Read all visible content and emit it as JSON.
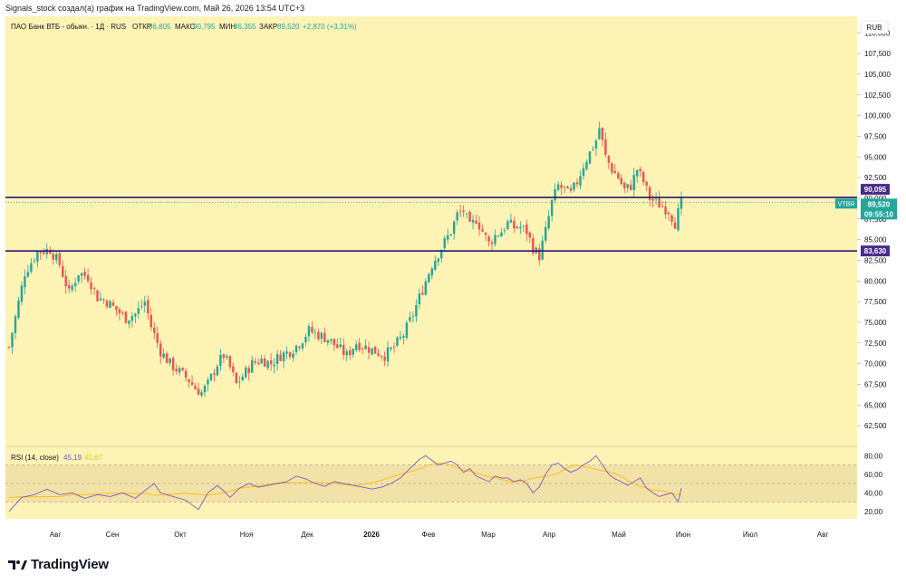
{
  "header": {
    "attribution": "Signals_stock создал(а) график на TradingView.com, Май 26, 2026 13:54 UTC+3"
  },
  "legend": {
    "title": "ПАО Банк ВТБ - обыкн. · 1Д · RUS",
    "open_label": "ОТКР",
    "open_value": "86,805",
    "high_label": "МАКС",
    "high_value": "90,795",
    "low_label": "МИН",
    "low_value": "86,355",
    "close_label": "ЗАКР",
    "close_value": "89,520",
    "change": "+2,870 (+3,31%)"
  },
  "currency": "RUB",
  "price_labels": {
    "level_upper": "90,095",
    "ticker": "VTBR",
    "last_price": "89,520",
    "countdown": "09:55:10",
    "level_lower": "83,630"
  },
  "rsi": {
    "label": "RSI (14, close)",
    "value": "45,19",
    "ma_value": "41,67"
  },
  "brand": {
    "name": "TradingView"
  },
  "colors": {
    "background": "#fdf3b5",
    "up": "#26a69a",
    "down": "#ef5350",
    "level_line": "#2a1a6e",
    "last_price_badge": "#26a69a",
    "level_badge": "#4a2a8a",
    "rsi_line": "#7e57c2",
    "rsi_ma": "#f5c216",
    "rsi_band": "#f3e2a8"
  },
  "chart_data": {
    "type": "candlestick",
    "title": "ПАО Банк ВТБ - обыкн. · 1Д · RUS",
    "ylim": [
      60000,
      112000
    ],
    "y_ticks": [
      "62,500",
      "65,000",
      "67,500",
      "70,000",
      "72,500",
      "75,000",
      "77,500",
      "80,000",
      "82,500",
      "85,000",
      "87,500",
      "90,000",
      "92,500",
      "95,000",
      "97,500",
      "100,000",
      "102,500",
      "105,000",
      "107,500",
      "110,000"
    ],
    "x_ticks": [
      "Авг",
      "Сен",
      "Окт",
      "Ноя",
      "Дек",
      "2026",
      "Фев",
      "Мар",
      "Апр",
      "Май",
      "Июн",
      "Июл",
      "Авг"
    ],
    "horizontal_levels": [
      90.095,
      83.63
    ],
    "last_price": 89.52,
    "close_path": [
      [
        0,
        72.0
      ],
      [
        5,
        81.0
      ],
      [
        9,
        83.5
      ],
      [
        13,
        83.8
      ],
      [
        16,
        82.0
      ],
      [
        19,
        78.5
      ],
      [
        22,
        81.0
      ],
      [
        25,
        80.5
      ],
      [
        28,
        78.0
      ],
      [
        31,
        77.5
      ],
      [
        34,
        76.5
      ],
      [
        37,
        75.5
      ],
      [
        40,
        76.0
      ],
      [
        43,
        77.5
      ],
      [
        45,
        74.5
      ],
      [
        48,
        71.5
      ],
      [
        51,
        70.0
      ],
      [
        54,
        69.0
      ],
      [
        57,
        68.0
      ],
      [
        59,
        67.0
      ],
      [
        61,
        66.5
      ],
      [
        63,
        67.5
      ],
      [
        66,
        70.0
      ],
      [
        68,
        71.0
      ],
      [
        70,
        69.5
      ],
      [
        72,
        67.5
      ],
      [
        74,
        68.5
      ],
      [
        77,
        70.0
      ],
      [
        80,
        70.5
      ],
      [
        83,
        70.0
      ],
      [
        86,
        71.0
      ],
      [
        89,
        71.5
      ],
      [
        92,
        72.5
      ],
      [
        95,
        74.0
      ],
      [
        98,
        73.5
      ],
      [
        101,
        73.0
      ],
      [
        104,
        72.0
      ],
      [
        107,
        71.0
      ],
      [
        110,
        72.5
      ],
      [
        113,
        72.0
      ],
      [
        116,
        71.5
      ],
      [
        119,
        71.0
      ],
      [
        122,
        72.0
      ],
      [
        125,
        73.5
      ],
      [
        128,
        76.0
      ],
      [
        131,
        79.0
      ],
      [
        134,
        82.0
      ],
      [
        137,
        84.0
      ],
      [
        140,
        86.0
      ],
      [
        142,
        88.0
      ],
      [
        144,
        88.5
      ],
      [
        146,
        86.5
      ],
      [
        148,
        87.5
      ],
      [
        150,
        86.0
      ],
      [
        152,
        84.5
      ],
      [
        154,
        85.5
      ],
      [
        156,
        86.0
      ],
      [
        158,
        87.0
      ],
      [
        160,
        86.5
      ],
      [
        162,
        86.5
      ],
      [
        164,
        86.0
      ],
      [
        166,
        84.0
      ],
      [
        168,
        83.0
      ],
      [
        170,
        86.0
      ],
      [
        172,
        89.5
      ],
      [
        174,
        91.5
      ],
      [
        176,
        91.0
      ],
      [
        178,
        90.5
      ],
      [
        180,
        92.0
      ],
      [
        182,
        94.0
      ],
      [
        184,
        95.5
      ],
      [
        186,
        97.0
      ],
      [
        187,
        98.5
      ],
      [
        189,
        95.0
      ],
      [
        191,
        93.5
      ],
      [
        193,
        92.5
      ],
      [
        195,
        91.0
      ],
      [
        197,
        91.5
      ],
      [
        199,
        93.5
      ],
      [
        201,
        92.0
      ],
      [
        203,
        90.0
      ],
      [
        205,
        89.5
      ],
      [
        207,
        89.0
      ],
      [
        209,
        88.5
      ],
      [
        211,
        87.0
      ],
      [
        213,
        89.5
      ]
    ],
    "rsi": {
      "ylim": [
        12,
        90
      ],
      "y_ticks": [
        "20,00",
        "40,00",
        "60,00",
        "80,00"
      ],
      "overbought": 70,
      "midline": 50,
      "oversold": 30,
      "values": [
        [
          0,
          20
        ],
        [
          4,
          35
        ],
        [
          8,
          38
        ],
        [
          12,
          44
        ],
        [
          16,
          38
        ],
        [
          20,
          40
        ],
        [
          24,
          34
        ],
        [
          28,
          38
        ],
        [
          32,
          36
        ],
        [
          36,
          40
        ],
        [
          40,
          34
        ],
        [
          44,
          45
        ],
        [
          46,
          50
        ],
        [
          48,
          40
        ],
        [
          52,
          36
        ],
        [
          56,
          32
        ],
        [
          60,
          22
        ],
        [
          63,
          40
        ],
        [
          66,
          48
        ],
        [
          68,
          42
        ],
        [
          70,
          35
        ],
        [
          73,
          45
        ],
        [
          76,
          50
        ],
        [
          79,
          46
        ],
        [
          82,
          48
        ],
        [
          85,
          50
        ],
        [
          88,
          52
        ],
        [
          91,
          58
        ],
        [
          94,
          55
        ],
        [
          97,
          50
        ],
        [
          100,
          47
        ],
        [
          103,
          52
        ],
        [
          106,
          50
        ],
        [
          109,
          48
        ],
        [
          112,
          46
        ],
        [
          115,
          44
        ],
        [
          118,
          46
        ],
        [
          121,
          50
        ],
        [
          124,
          56
        ],
        [
          127,
          66
        ],
        [
          130,
          76
        ],
        [
          132,
          80
        ],
        [
          134,
          75
        ],
        [
          136,
          70
        ],
        [
          138,
          72
        ],
        [
          140,
          74
        ],
        [
          142,
          70
        ],
        [
          144,
          62
        ],
        [
          146,
          66
        ],
        [
          148,
          58
        ],
        [
          150,
          55
        ],
        [
          152,
          52
        ],
        [
          154,
          58
        ],
        [
          156,
          56
        ],
        [
          158,
          56
        ],
        [
          160,
          52
        ],
        [
          162,
          54
        ],
        [
          164,
          50
        ],
        [
          166,
          40
        ],
        [
          168,
          46
        ],
        [
          170,
          60
        ],
        [
          172,
          70
        ],
        [
          174,
          72
        ],
        [
          176,
          66
        ],
        [
          178,
          62
        ],
        [
          180,
          65
        ],
        [
          182,
          70
        ],
        [
          184,
          74
        ],
        [
          186,
          80
        ],
        [
          188,
          70
        ],
        [
          190,
          60
        ],
        [
          192,
          55
        ],
        [
          194,
          52
        ],
        [
          196,
          48
        ],
        [
          198,
          52
        ],
        [
          200,
          56
        ],
        [
          202,
          45
        ],
        [
          204,
          40
        ],
        [
          206,
          36
        ],
        [
          208,
          38
        ],
        [
          210,
          40
        ],
        [
          212,
          30
        ],
        [
          213,
          45
        ]
      ]
    }
  }
}
